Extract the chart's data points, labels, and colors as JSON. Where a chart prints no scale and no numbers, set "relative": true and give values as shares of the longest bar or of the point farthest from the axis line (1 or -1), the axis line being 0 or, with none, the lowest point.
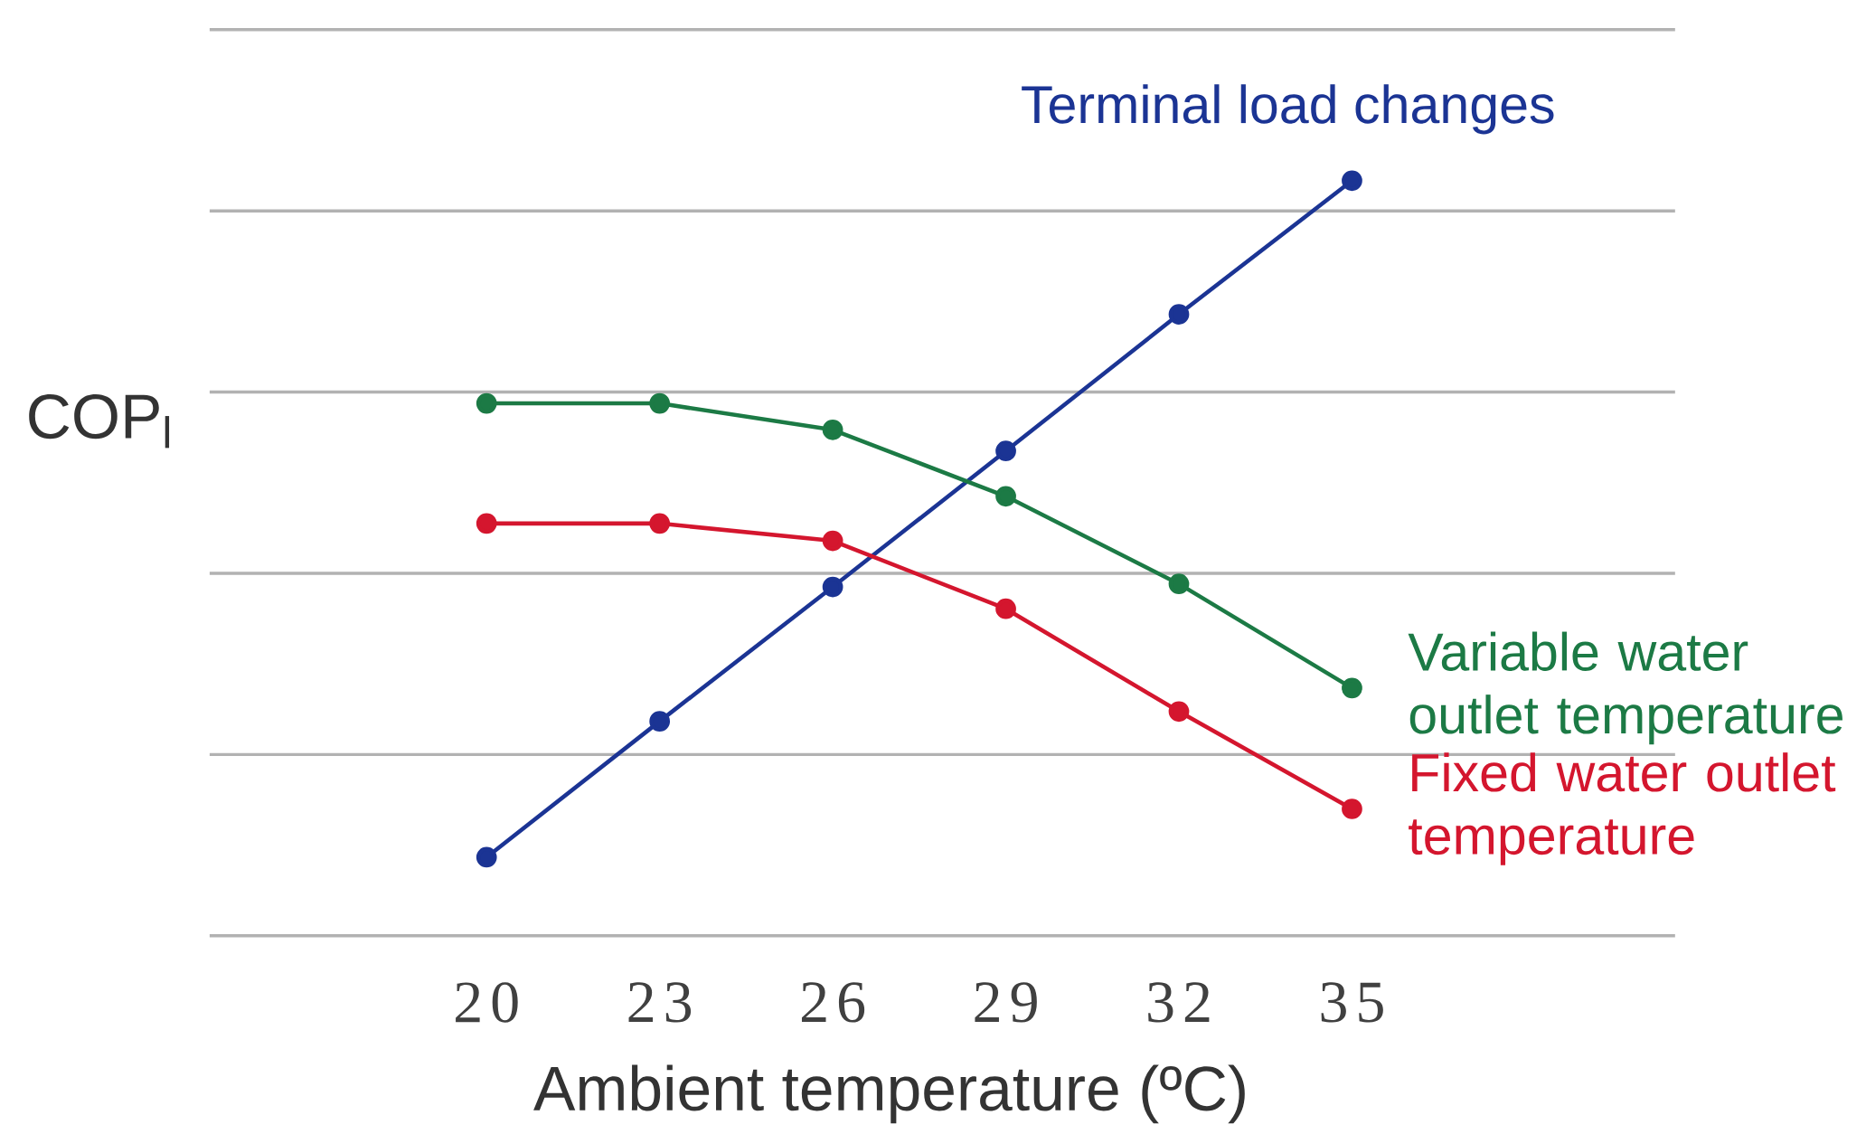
{
  "chart_data": {
    "type": "line",
    "relative": true,
    "xlabel": "Ambient temperature (ºC)",
    "ylabel": "COP$_{l}$",
    "x": [
      20,
      23,
      26,
      29,
      32,
      35
    ],
    "xlim": [
      15.2,
      40.6
    ],
    "xticks": [
      20,
      23,
      26,
      29,
      32,
      35
    ],
    "grid": "y",
    "legend": false,
    "marker": "circle",
    "line_style": "solid",
    "series": [
      {
        "name": "Terminal load changes",
        "color": "#1b3494",
        "values": [
          0.104,
          0.284,
          0.462,
          0.642,
          0.823,
          1
        ]
      },
      {
        "name": "Variable water outlet temperature",
        "color": "#1c7a45",
        "values": [
          0.705,
          0.705,
          0.67,
          0.582,
          0.466,
          0.328
        ]
      },
      {
        "name": "Fixed water outlet temperature",
        "color": "#d4162e",
        "values": [
          0.546,
          0.546,
          0.523,
          0.433,
          0.297,
          0.168
        ]
      }
    ]
  }
}
